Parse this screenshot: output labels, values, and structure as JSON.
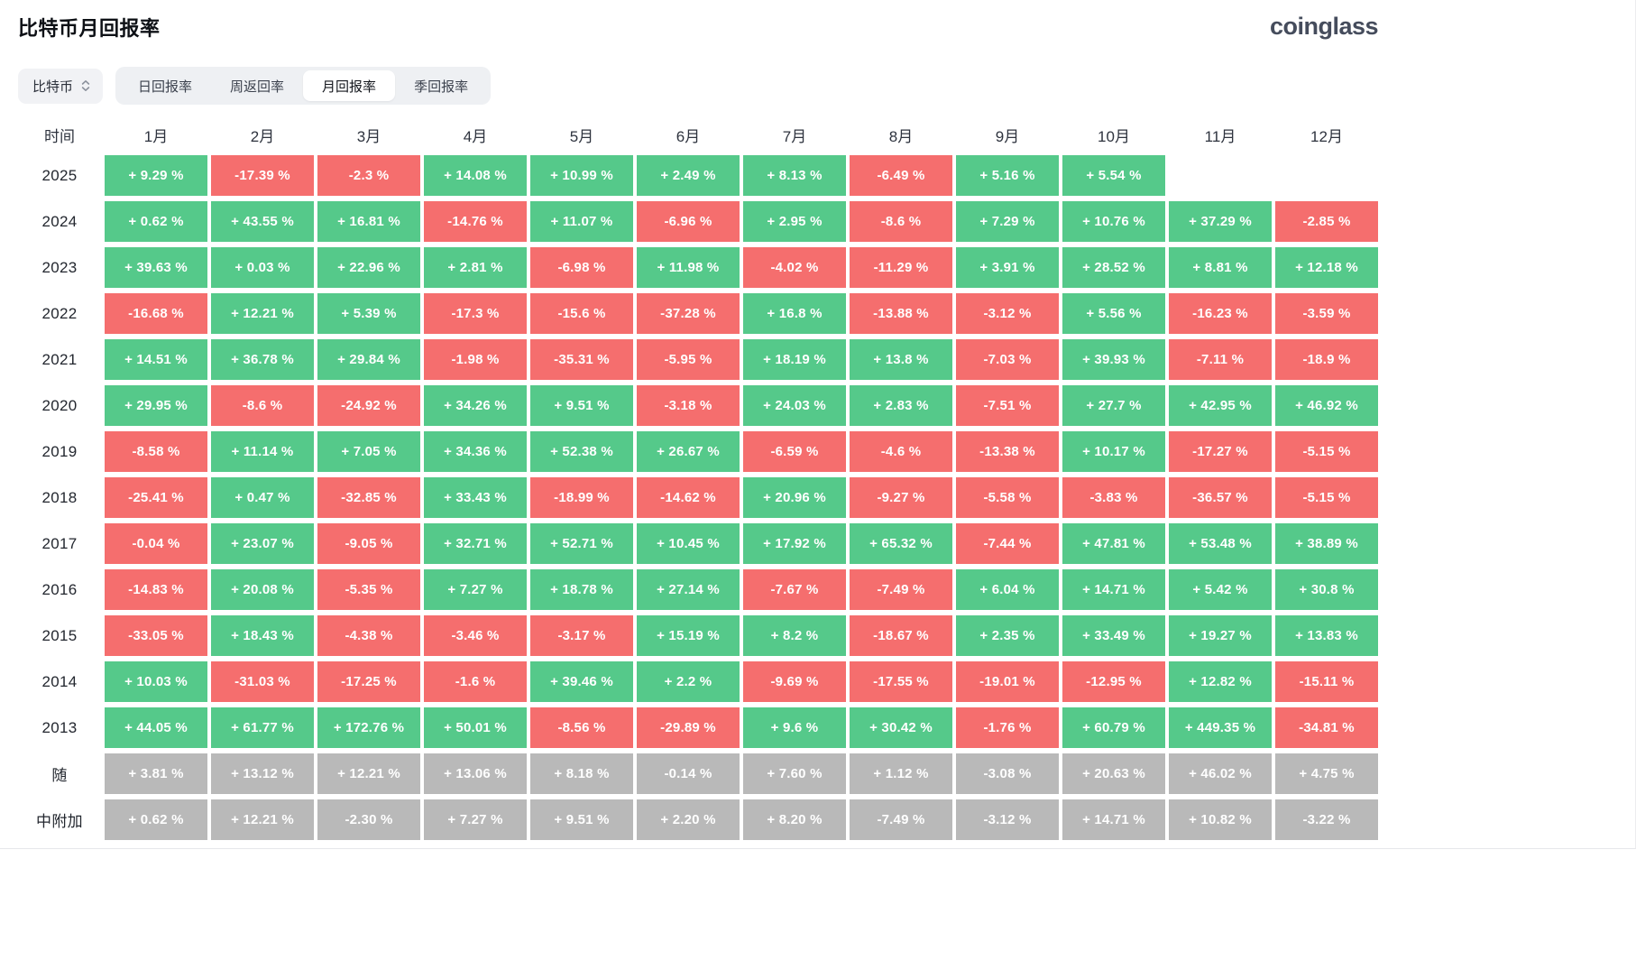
{
  "page": {
    "title": "比特币月回报率",
    "brand": "coinglass"
  },
  "controls": {
    "coin_selector": "比特币",
    "tabs": [
      {
        "label": "日回报率",
        "active": false
      },
      {
        "label": "周返回率",
        "active": false
      },
      {
        "label": "月回报率",
        "active": true
      },
      {
        "label": "季回报率",
        "active": false
      }
    ]
  },
  "colors": {
    "up": "#55c98a",
    "down": "#f56e6e",
    "gray": "#b9b9b9"
  },
  "table": {
    "corner_header": "时间",
    "month_headers": [
      "1月",
      "2月",
      "3月",
      "4月",
      "5月",
      "6月",
      "7月",
      "8月",
      "9月",
      "10月",
      "11月",
      "12月"
    ],
    "rows": [
      {
        "label": "2025",
        "cells": [
          [
            "+ 9.29 %",
            "up"
          ],
          [
            "-17.39 %",
            "down"
          ],
          [
            "-2.3 %",
            "down"
          ],
          [
            "+ 14.08 %",
            "up"
          ],
          [
            "+ 10.99 %",
            "up"
          ],
          [
            "+ 2.49 %",
            "up"
          ],
          [
            "+ 8.13 %",
            "up"
          ],
          [
            "-6.49 %",
            "down"
          ],
          [
            "+ 5.16 %",
            "up"
          ],
          [
            "+ 5.54 %",
            "up"
          ],
          [
            "",
            ""
          ],
          [
            "",
            ""
          ]
        ]
      },
      {
        "label": "2024",
        "cells": [
          [
            "+ 0.62 %",
            "up"
          ],
          [
            "+ 43.55 %",
            "up"
          ],
          [
            "+ 16.81 %",
            "up"
          ],
          [
            "-14.76 %",
            "down"
          ],
          [
            "+ 11.07 %",
            "up"
          ],
          [
            "-6.96 %",
            "down"
          ],
          [
            "+ 2.95 %",
            "up"
          ],
          [
            "-8.6 %",
            "down"
          ],
          [
            "+ 7.29 %",
            "up"
          ],
          [
            "+ 10.76 %",
            "up"
          ],
          [
            "+ 37.29 %",
            "up"
          ],
          [
            "-2.85 %",
            "down"
          ]
        ]
      },
      {
        "label": "2023",
        "cells": [
          [
            "+ 39.63 %",
            "up"
          ],
          [
            "+ 0.03 %",
            "up"
          ],
          [
            "+ 22.96 %",
            "up"
          ],
          [
            "+ 2.81 %",
            "up"
          ],
          [
            "-6.98 %",
            "down"
          ],
          [
            "+ 11.98 %",
            "up"
          ],
          [
            "-4.02 %",
            "down"
          ],
          [
            "-11.29 %",
            "down"
          ],
          [
            "+ 3.91 %",
            "up"
          ],
          [
            "+ 28.52 %",
            "up"
          ],
          [
            "+ 8.81 %",
            "up"
          ],
          [
            "+ 12.18 %",
            "up"
          ]
        ]
      },
      {
        "label": "2022",
        "cells": [
          [
            "-16.68 %",
            "down"
          ],
          [
            "+ 12.21 %",
            "up"
          ],
          [
            "+ 5.39 %",
            "up"
          ],
          [
            "-17.3 %",
            "down"
          ],
          [
            "-15.6 %",
            "down"
          ],
          [
            "-37.28 %",
            "down"
          ],
          [
            "+ 16.8 %",
            "up"
          ],
          [
            "-13.88 %",
            "down"
          ],
          [
            "-3.12 %",
            "down"
          ],
          [
            "+ 5.56 %",
            "up"
          ],
          [
            "-16.23 %",
            "down"
          ],
          [
            "-3.59 %",
            "down"
          ]
        ]
      },
      {
        "label": "2021",
        "cells": [
          [
            "+ 14.51 %",
            "up"
          ],
          [
            "+ 36.78 %",
            "up"
          ],
          [
            "+ 29.84 %",
            "up"
          ],
          [
            "-1.98 %",
            "down"
          ],
          [
            "-35.31 %",
            "down"
          ],
          [
            "-5.95 %",
            "down"
          ],
          [
            "+ 18.19 %",
            "up"
          ],
          [
            "+ 13.8 %",
            "up"
          ],
          [
            "-7.03 %",
            "down"
          ],
          [
            "+ 39.93 %",
            "up"
          ],
          [
            "-7.11 %",
            "down"
          ],
          [
            "-18.9 %",
            "down"
          ]
        ]
      },
      {
        "label": "2020",
        "cells": [
          [
            "+ 29.95 %",
            "up"
          ],
          [
            "-8.6 %",
            "down"
          ],
          [
            "-24.92 %",
            "down"
          ],
          [
            "+ 34.26 %",
            "up"
          ],
          [
            "+ 9.51 %",
            "up"
          ],
          [
            "-3.18 %",
            "down"
          ],
          [
            "+ 24.03 %",
            "up"
          ],
          [
            "+ 2.83 %",
            "up"
          ],
          [
            "-7.51 %",
            "down"
          ],
          [
            "+ 27.7 %",
            "up"
          ],
          [
            "+ 42.95 %",
            "up"
          ],
          [
            "+ 46.92 %",
            "up"
          ]
        ]
      },
      {
        "label": "2019",
        "cells": [
          [
            "-8.58 %",
            "down"
          ],
          [
            "+ 11.14 %",
            "up"
          ],
          [
            "+ 7.05 %",
            "up"
          ],
          [
            "+ 34.36 %",
            "up"
          ],
          [
            "+ 52.38 %",
            "up"
          ],
          [
            "+ 26.67 %",
            "up"
          ],
          [
            "-6.59 %",
            "down"
          ],
          [
            "-4.6 %",
            "down"
          ],
          [
            "-13.38 %",
            "down"
          ],
          [
            "+ 10.17 %",
            "up"
          ],
          [
            "-17.27 %",
            "down"
          ],
          [
            "-5.15 %",
            "down"
          ]
        ]
      },
      {
        "label": "2018",
        "cells": [
          [
            "-25.41 %",
            "down"
          ],
          [
            "+ 0.47 %",
            "up"
          ],
          [
            "-32.85 %",
            "down"
          ],
          [
            "+ 33.43 %",
            "up"
          ],
          [
            "-18.99 %",
            "down"
          ],
          [
            "-14.62 %",
            "down"
          ],
          [
            "+ 20.96 %",
            "up"
          ],
          [
            "-9.27 %",
            "down"
          ],
          [
            "-5.58 %",
            "down"
          ],
          [
            "-3.83 %",
            "down"
          ],
          [
            "-36.57 %",
            "down"
          ],
          [
            "-5.15 %",
            "down"
          ]
        ]
      },
      {
        "label": "2017",
        "cells": [
          [
            "-0.04 %",
            "down"
          ],
          [
            "+ 23.07 %",
            "up"
          ],
          [
            "-9.05 %",
            "down"
          ],
          [
            "+ 32.71 %",
            "up"
          ],
          [
            "+ 52.71 %",
            "up"
          ],
          [
            "+ 10.45 %",
            "up"
          ],
          [
            "+ 17.92 %",
            "up"
          ],
          [
            "+ 65.32 %",
            "up"
          ],
          [
            "-7.44 %",
            "down"
          ],
          [
            "+ 47.81 %",
            "up"
          ],
          [
            "+ 53.48 %",
            "up"
          ],
          [
            "+ 38.89 %",
            "up"
          ]
        ]
      },
      {
        "label": "2016",
        "cells": [
          [
            "-14.83 %",
            "down"
          ],
          [
            "+ 20.08 %",
            "up"
          ],
          [
            "-5.35 %",
            "down"
          ],
          [
            "+ 7.27 %",
            "up"
          ],
          [
            "+ 18.78 %",
            "up"
          ],
          [
            "+ 27.14 %",
            "up"
          ],
          [
            "-7.67 %",
            "down"
          ],
          [
            "-7.49 %",
            "down"
          ],
          [
            "+ 6.04 %",
            "up"
          ],
          [
            "+ 14.71 %",
            "up"
          ],
          [
            "+ 5.42 %",
            "up"
          ],
          [
            "+ 30.8 %",
            "up"
          ]
        ]
      },
      {
        "label": "2015",
        "cells": [
          [
            "-33.05 %",
            "down"
          ],
          [
            "+ 18.43 %",
            "up"
          ],
          [
            "-4.38 %",
            "down"
          ],
          [
            "-3.46 %",
            "down"
          ],
          [
            "-3.17 %",
            "down"
          ],
          [
            "+ 15.19 %",
            "up"
          ],
          [
            "+ 8.2 %",
            "up"
          ],
          [
            "-18.67 %",
            "down"
          ],
          [
            "+ 2.35 %",
            "up"
          ],
          [
            "+ 33.49 %",
            "up"
          ],
          [
            "+ 19.27 %",
            "up"
          ],
          [
            "+ 13.83 %",
            "up"
          ]
        ]
      },
      {
        "label": "2014",
        "cells": [
          [
            "+ 10.03 %",
            "up"
          ],
          [
            "-31.03 %",
            "down"
          ],
          [
            "-17.25 %",
            "down"
          ],
          [
            "-1.6 %",
            "down"
          ],
          [
            "+ 39.46 %",
            "up"
          ],
          [
            "+ 2.2 %",
            "up"
          ],
          [
            "-9.69 %",
            "down"
          ],
          [
            "-17.55 %",
            "down"
          ],
          [
            "-19.01 %",
            "down"
          ],
          [
            "-12.95 %",
            "down"
          ],
          [
            "+ 12.82 %",
            "up"
          ],
          [
            "-15.11 %",
            "down"
          ]
        ]
      },
      {
        "label": "2013",
        "cells": [
          [
            "+ 44.05 %",
            "up"
          ],
          [
            "+ 61.77 %",
            "up"
          ],
          [
            "+ 172.76 %",
            "up"
          ],
          [
            "+ 50.01 %",
            "up"
          ],
          [
            "-8.56 %",
            "down"
          ],
          [
            "-29.89 %",
            "down"
          ],
          [
            "+ 9.6 %",
            "up"
          ],
          [
            "+ 30.42 %",
            "up"
          ],
          [
            "-1.76 %",
            "down"
          ],
          [
            "+ 60.79 %",
            "up"
          ],
          [
            "+ 449.35 %",
            "up"
          ],
          [
            "-34.81 %",
            "down"
          ]
        ]
      },
      {
        "label": "随",
        "cells": [
          [
            "+ 3.81 %",
            "gray"
          ],
          [
            "+ 13.12 %",
            "gray"
          ],
          [
            "+ 12.21 %",
            "gray"
          ],
          [
            "+ 13.06 %",
            "gray"
          ],
          [
            "+ 8.18 %",
            "gray"
          ],
          [
            "-0.14 %",
            "gray"
          ],
          [
            "+ 7.60 %",
            "gray"
          ],
          [
            "+ 1.12 %",
            "gray"
          ],
          [
            "-3.08 %",
            "gray"
          ],
          [
            "+ 20.63 %",
            "gray"
          ],
          [
            "+ 46.02 %",
            "gray"
          ],
          [
            "+ 4.75 %",
            "gray"
          ]
        ]
      },
      {
        "label": "中附加",
        "cells": [
          [
            "+ 0.62 %",
            "gray"
          ],
          [
            "+ 12.21 %",
            "gray"
          ],
          [
            "-2.30 %",
            "gray"
          ],
          [
            "+ 7.27 %",
            "gray"
          ],
          [
            "+ 9.51 %",
            "gray"
          ],
          [
            "+ 2.20 %",
            "gray"
          ],
          [
            "+ 8.20 %",
            "gray"
          ],
          [
            "-7.49 %",
            "gray"
          ],
          [
            "-3.12 %",
            "gray"
          ],
          [
            "+ 14.71 %",
            "gray"
          ],
          [
            "+ 10.82 %",
            "gray"
          ],
          [
            "-3.22 %",
            "gray"
          ]
        ]
      }
    ]
  }
}
